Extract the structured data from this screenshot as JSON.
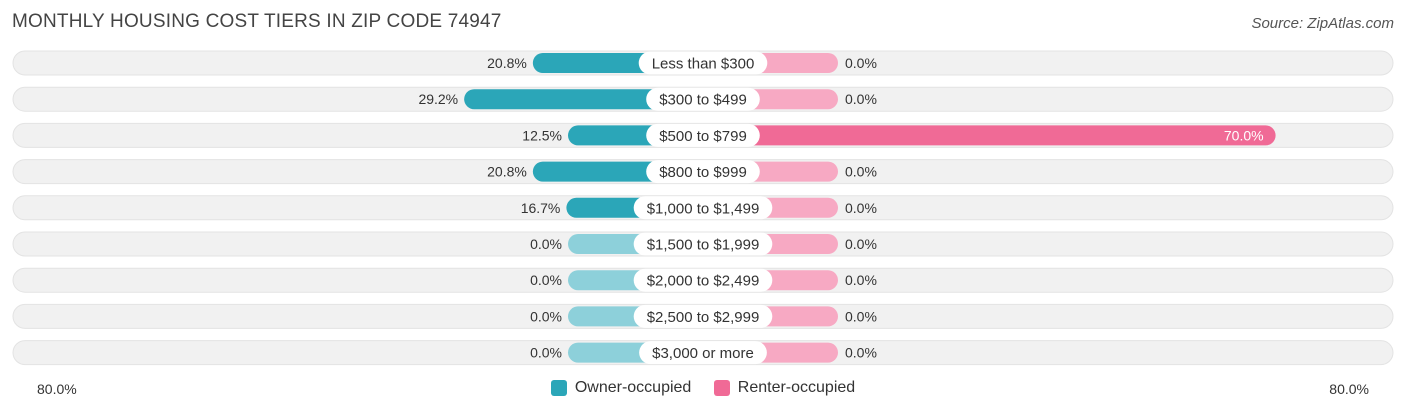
{
  "header": {
    "title": "MONTHLY HOUSING COST TIERS IN ZIP CODE 74947",
    "source": "Source: ZipAtlas.com"
  },
  "colors": {
    "owner": "#2ba6b8",
    "owner_light": "#8dd0da",
    "renter": "#f06a96",
    "renter_light": "#f7a9c3",
    "row_bg": "#f1f1f1"
  },
  "legend": {
    "owner_label": "Owner-occupied",
    "renter_label": "Renter-occupied"
  },
  "axis": {
    "left_label": "80.0%",
    "right_label": "80.0%"
  },
  "chart_data": {
    "type": "bar",
    "orientation": "horizontal-diverging",
    "categories": [
      "Less than $300",
      "$300 to $499",
      "$500 to $799",
      "$800 to $999",
      "$1,000 to $1,499",
      "$1,500 to $1,999",
      "$2,000 to $2,499",
      "$2,500 to $2,999",
      "$3,000 or more"
    ],
    "series": [
      {
        "name": "Owner-occupied",
        "values": [
          20.8,
          29.2,
          12.5,
          20.8,
          16.7,
          0.0,
          0.0,
          0.0,
          0.0
        ],
        "labels": [
          "20.8%",
          "29.2%",
          "12.5%",
          "20.8%",
          "16.7%",
          "0.0%",
          "0.0%",
          "0.0%",
          "0.0%"
        ]
      },
      {
        "name": "Renter-occupied",
        "values": [
          0.0,
          0.0,
          70.0,
          0.0,
          0.0,
          0.0,
          0.0,
          0.0,
          0.0
        ],
        "labels": [
          "0.0%",
          "0.0%",
          "70.0%",
          "0.0%",
          "0.0%",
          "0.0%",
          "0.0%",
          "0.0%",
          "0.0%"
        ]
      }
    ],
    "xlim": [
      -80,
      80
    ],
    "legend_position": "bottom-center"
  }
}
